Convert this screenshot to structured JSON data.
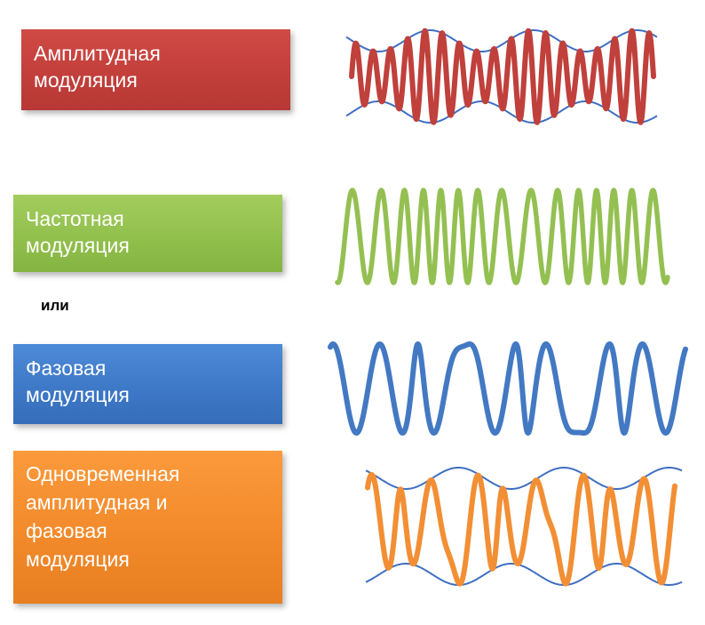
{
  "labels": {
    "am": "Амплитудная\nмодуляция",
    "fm": "Частотная\nмодуляция",
    "or": "или",
    "pm": "Фазовая\nмодуляция",
    "apm": "Одновременная\nамплитудная и\nфазовая\nмодуляция"
  },
  "colors": {
    "am": "#c0403c",
    "fm": "#94c052",
    "pm": "#4379c3",
    "apm": "#f28f35",
    "envelope": "#3f6fc2"
  },
  "waves": {
    "am": {
      "type": "amplitude-modulation",
      "carrier_cycles": 17.5,
      "envelope_peaks": 3
    },
    "fm": {
      "type": "frequency-modulation"
    },
    "pm": {
      "type": "phase-modulation"
    },
    "apm": {
      "type": "amplitude-and-phase-modulation",
      "envelope_peaks": 3
    }
  }
}
